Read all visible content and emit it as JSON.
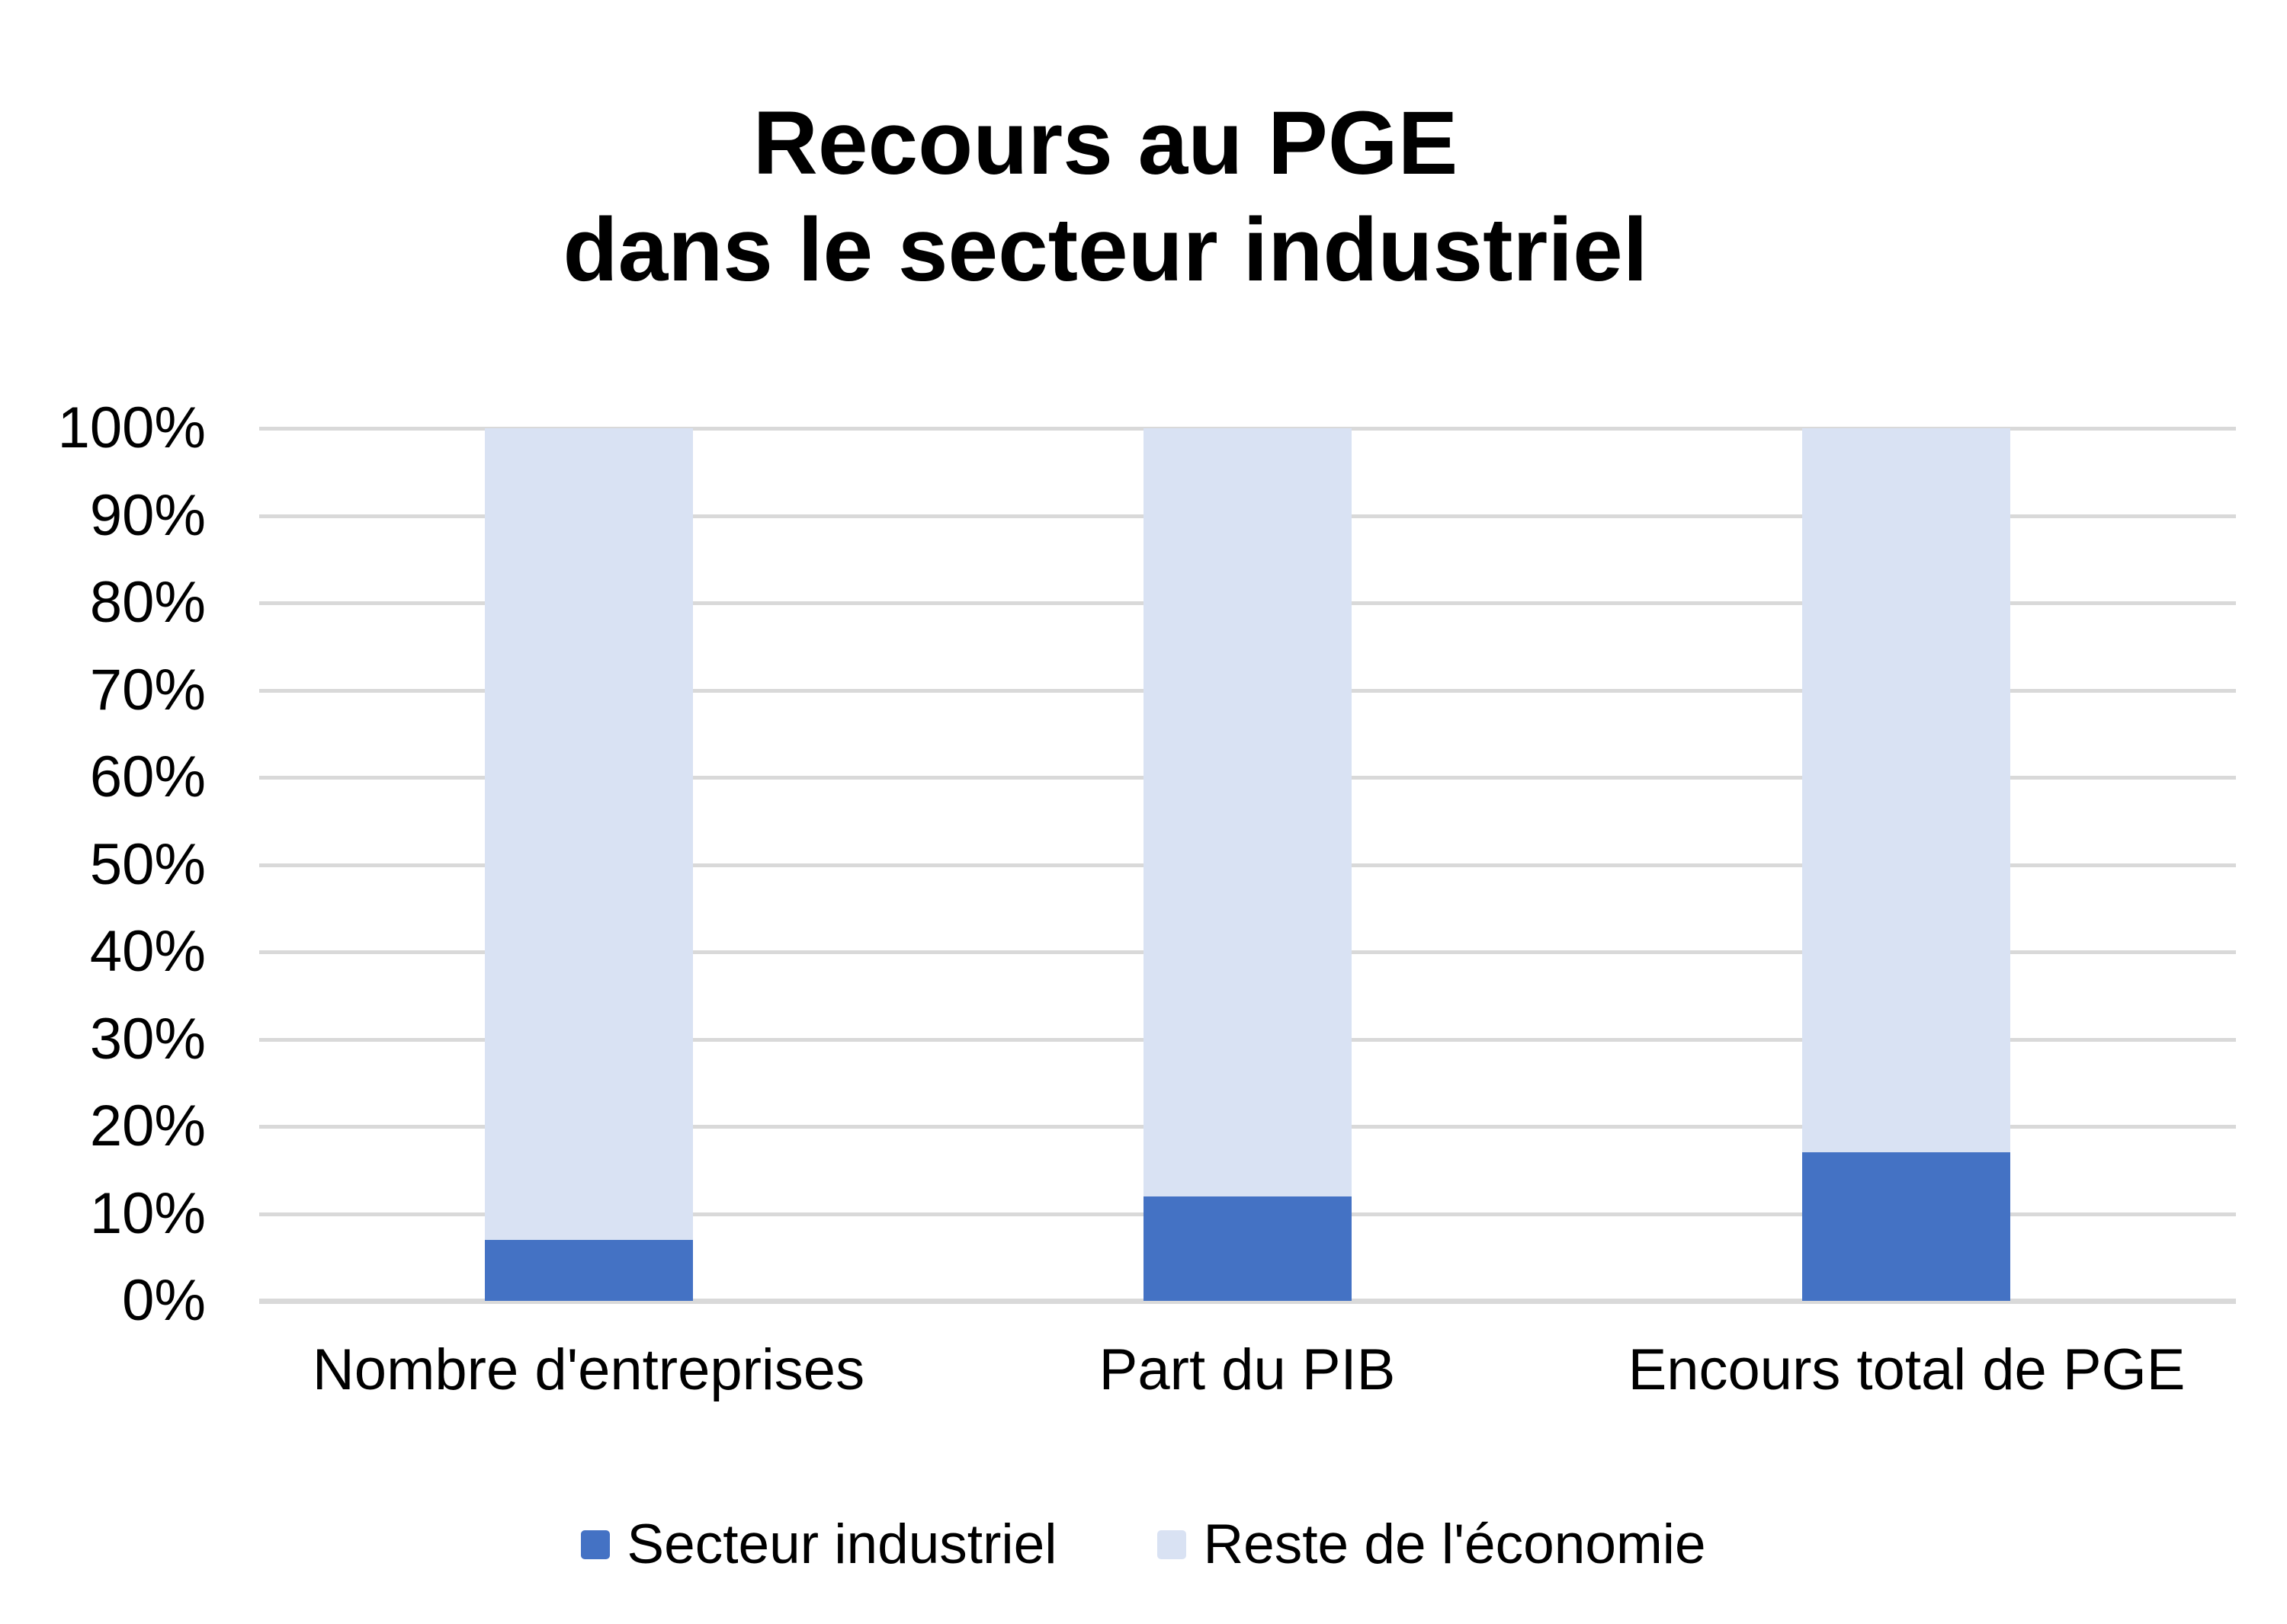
{
  "title": {
    "line1": "Recours au PGE",
    "line2": "dans le secteur industriel"
  },
  "chart_data": {
    "type": "bar",
    "stacked": true,
    "title": "Recours au PGE dans le secteur industriel",
    "categories": [
      "Nombre d'entreprises",
      "Part du PIB",
      "Encours total de PGE"
    ],
    "series": [
      {
        "name": "Secteur industriel",
        "color": "#4472C4",
        "values": [
          7,
          12,
          17
        ]
      },
      {
        "name": "Reste de l'économie",
        "color": "#D9E2F3",
        "values": [
          93,
          88,
          83
        ]
      }
    ],
    "xlabel": "",
    "ylabel": "",
    "ylim": [
      0,
      100
    ],
    "y_tick_step": 10,
    "y_ticks": [
      "0%",
      "10%",
      "20%",
      "30%",
      "40%",
      "50%",
      "60%",
      "70%",
      "80%",
      "90%",
      "100%"
    ],
    "grid": true,
    "legend_position": "bottom",
    "colors": {
      "gridline": "#D9D9D9",
      "axis_line": "#D9D9D9",
      "text": "#000000",
      "background": "#FFFFFF"
    }
  }
}
